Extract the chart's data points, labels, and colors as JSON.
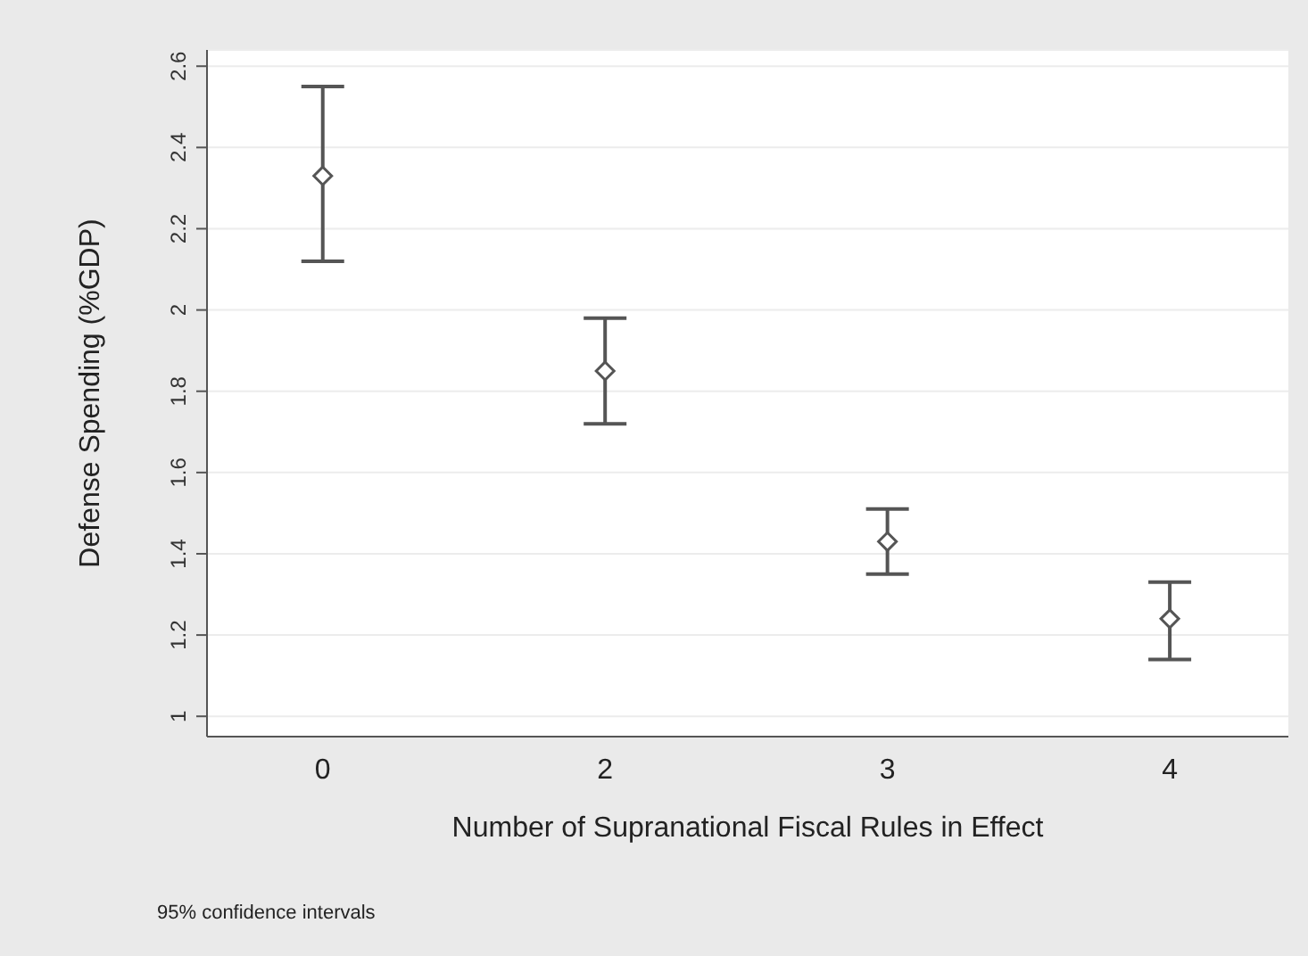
{
  "chart_data": {
    "type": "scatter",
    "xlabel": "Number of Supranational Fiscal Rules in Effect",
    "ylabel": "Defense Spending (%GDP)",
    "annotations": [
      "95% confidence intervals"
    ],
    "categories": [
      "0",
      "2",
      "3",
      "4"
    ],
    "values": [
      2.33,
      1.85,
      1.43,
      1.24
    ],
    "errors": [
      [
        2.12,
        2.55
      ],
      [
        1.72,
        1.98
      ],
      [
        1.35,
        1.51
      ],
      [
        1.14,
        1.33
      ]
    ],
    "color": "#555555",
    "marker": "diamond",
    "ylim": [
      0.95,
      2.64
    ],
    "yticks": [
      1,
      1.2,
      1.4,
      1.6,
      1.8,
      2,
      2.2,
      2.4,
      2.6
    ],
    "grid": "y"
  }
}
